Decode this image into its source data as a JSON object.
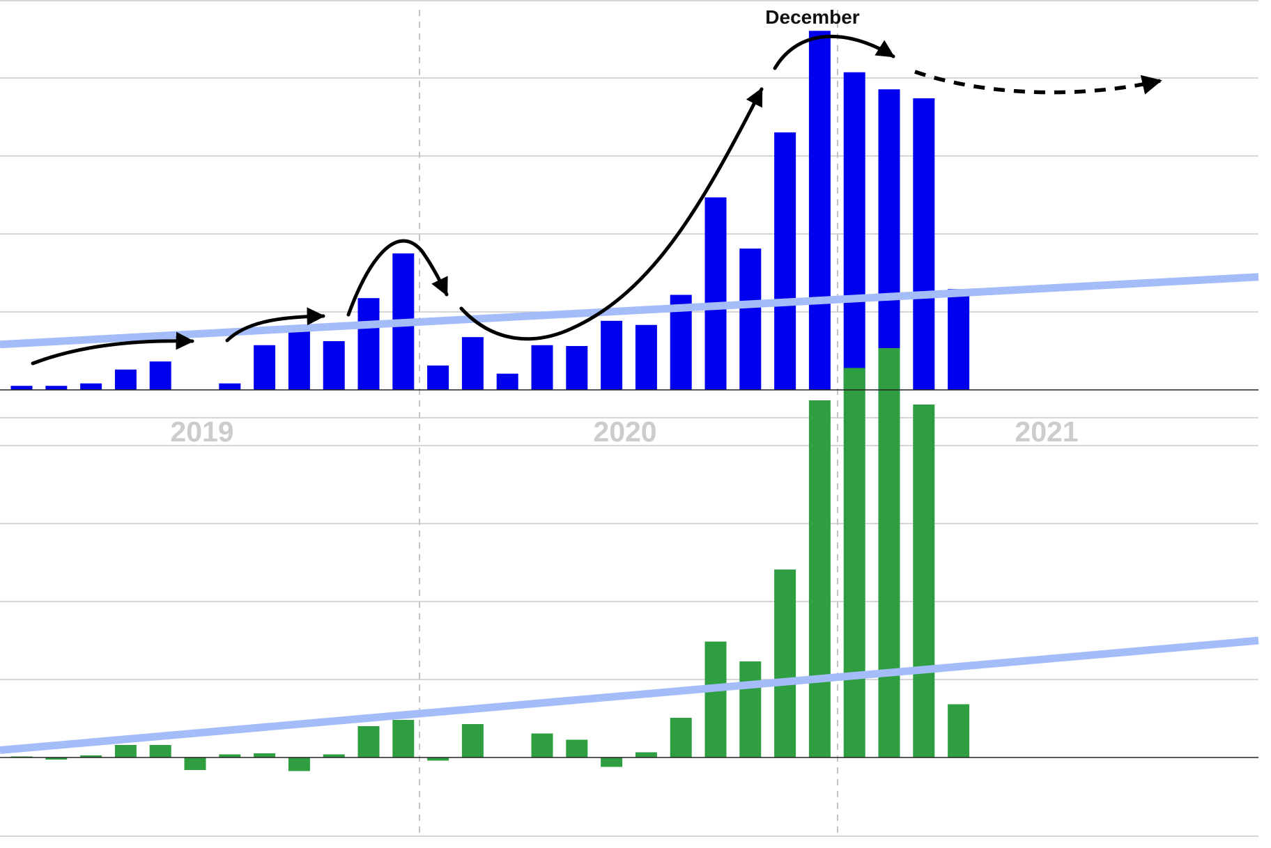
{
  "chart_data": {
    "type": "bar",
    "title": "",
    "x_axis": {
      "year_labels": [
        "2019",
        "2020",
        "2021"
      ]
    },
    "annotation": "December",
    "grid": true,
    "colors": {
      "top_bars": "#0000ee",
      "bottom_bars": "#2e9e41",
      "trendline": "#a4bdf8",
      "arrows": "#000000"
    },
    "panels": [
      {
        "name": "top",
        "ylim": [
          0,
          4.5
        ],
        "values": [
          0.05,
          0.05,
          0.08,
          0.25,
          0.35,
          null,
          0.08,
          0.55,
          0.75,
          0.6,
          1.13,
          1.68,
          0.3,
          0.65,
          0.2,
          0.55,
          0.54,
          0.85,
          0.8,
          1.17,
          2.37,
          1.74,
          3.17,
          4.42,
          3.91,
          3.7,
          3.59,
          1.24
        ],
        "trendline": {
          "start": 0.56,
          "end": 1.39
        }
      },
      {
        "name": "bottom",
        "ylim": [
          -1,
          4
        ],
        "values": [
          0.01,
          -0.02,
          0.02,
          0.12,
          0.12,
          -0.12,
          0.03,
          0.04,
          -0.13,
          0.03,
          0.3,
          0.36,
          -0.03,
          0.32,
          null,
          0.23,
          0.17,
          -0.09,
          0.05,
          0.38,
          1.11,
          0.92,
          1.8,
          3.42,
          3.73,
          3.92,
          3.38,
          0.51
        ],
        "trendline": {
          "start": 0.07,
          "end": 1.12
        }
      }
    ]
  }
}
